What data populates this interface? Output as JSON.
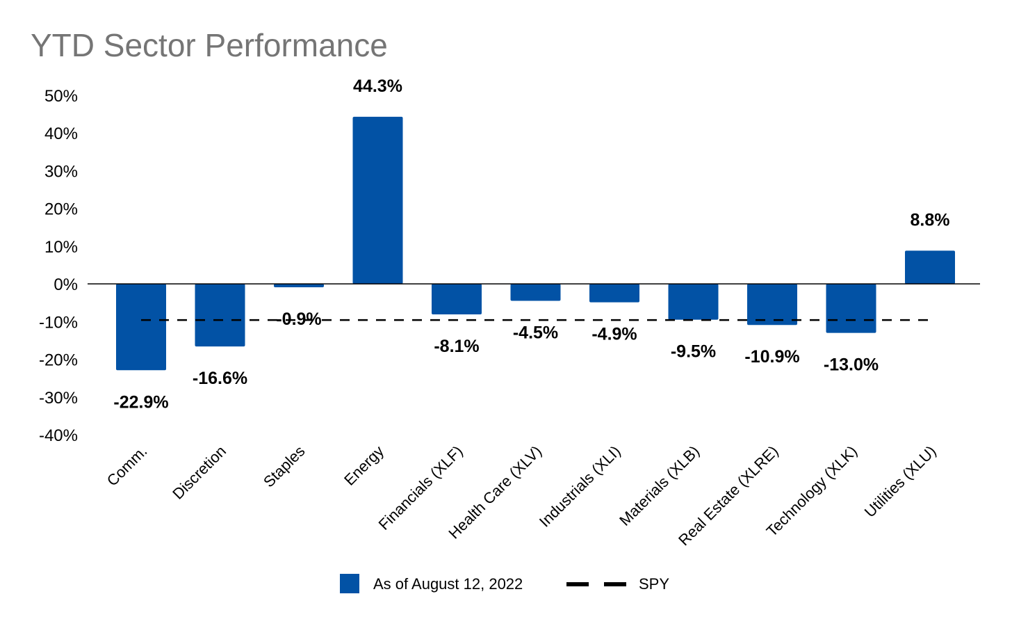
{
  "chart_data": {
    "type": "bar",
    "title": "YTD Sector Performance",
    "categories": [
      "Comm.",
      "Discretion",
      "Staples",
      "Energy",
      "Financials (XLF)",
      "Health Care (XLV)",
      "Industrials (XLI)",
      "Materials (XLB)",
      "Real Estate (XLRE)",
      "Technology (XLK)",
      "Utilities (XLU)"
    ],
    "series": [
      {
        "name": "As of August 12, 2022",
        "color": "#0252a5",
        "values": [
          -22.9,
          -16.6,
          -0.9,
          44.3,
          -8.1,
          -4.5,
          -4.9,
          -9.5,
          -10.9,
          -13.0,
          8.8
        ],
        "labels": [
          "-22.9%",
          "-16.6%",
          "-0.9%",
          "44.3%",
          "-8.1%",
          "-4.5%",
          "-4.9%",
          "-9.5%",
          "-10.9%",
          "-13.0%",
          "8.8%"
        ]
      }
    ],
    "reference_line": {
      "name": "SPY",
      "value": -9.6,
      "style": "dashed",
      "color": "#000000"
    },
    "yticks": [
      "50%",
      "40%",
      "30%",
      "20%",
      "10%",
      "0%",
      "-10%",
      "-20%",
      "-30%",
      "-40%"
    ],
    "ytick_values": [
      50,
      40,
      30,
      20,
      10,
      0,
      -10,
      -20,
      -30,
      -40
    ],
    "ylim": [
      -40,
      50
    ],
    "xlabel": "",
    "ylabel": "",
    "legend_position": "bottom"
  }
}
